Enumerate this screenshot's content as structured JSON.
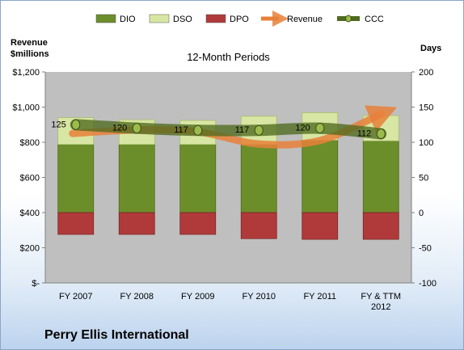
{
  "company": "Perry Ellis International",
  "chart_data": {
    "type": "bar",
    "subtitle": "12-Month Periods",
    "left_axis_title": [
      "Revenue",
      "$millions"
    ],
    "right_axis_title": "Days",
    "categories": [
      "FY 2007",
      "FY 2008",
      "FY 2009",
      "FY 2010",
      "FY 2011",
      [
        "FY & TTM",
        "2012"
      ]
    ],
    "left_axis": {
      "min": 0,
      "max": 1200,
      "step": 200,
      "tick_labels": [
        "$-",
        "$200",
        "$400",
        "$600",
        "$800",
        "$1,000",
        "$1,200"
      ]
    },
    "right_axis": {
      "min": -100,
      "max": 200,
      "step": 50,
      "tick_labels": [
        "-100",
        "-50",
        "0",
        "50",
        "100",
        "150",
        "200"
      ]
    },
    "legend": {
      "position": "top",
      "items": [
        "DIO",
        "DSO",
        "DPO",
        "Revenue",
        "CCC"
      ]
    },
    "grid": false,
    "series": [
      {
        "name": "DIO",
        "axis": "right",
        "values": [
          97,
          97,
          97,
          97,
          103,
          102
        ]
      },
      {
        "name": "DSO",
        "axis": "right",
        "values": [
          38,
          35,
          34,
          40,
          39,
          36
        ]
      },
      {
        "name": "DPO",
        "axis": "right",
        "values": [
          -31,
          -31,
          -31,
          -37,
          -38,
          -38
        ]
      },
      {
        "name": "Revenue",
        "axis": "left",
        "values": [
          850,
          870,
          860,
          790,
          810,
          960
        ]
      },
      {
        "name": "CCC",
        "axis": "right",
        "values": [
          125,
          120,
          117,
          117,
          120,
          112
        ],
        "data_labels": [
          "125",
          "120",
          "117",
          "117",
          "120",
          "112"
        ]
      }
    ],
    "colors": {
      "DIO": "#6b8e2a",
      "DSO": "#d8e6a4",
      "DPO": "#b03a3a",
      "Revenue": "#e8803a",
      "CCC": "#4f6a1f",
      "plot_bg": "#bfbfbf"
    }
  }
}
